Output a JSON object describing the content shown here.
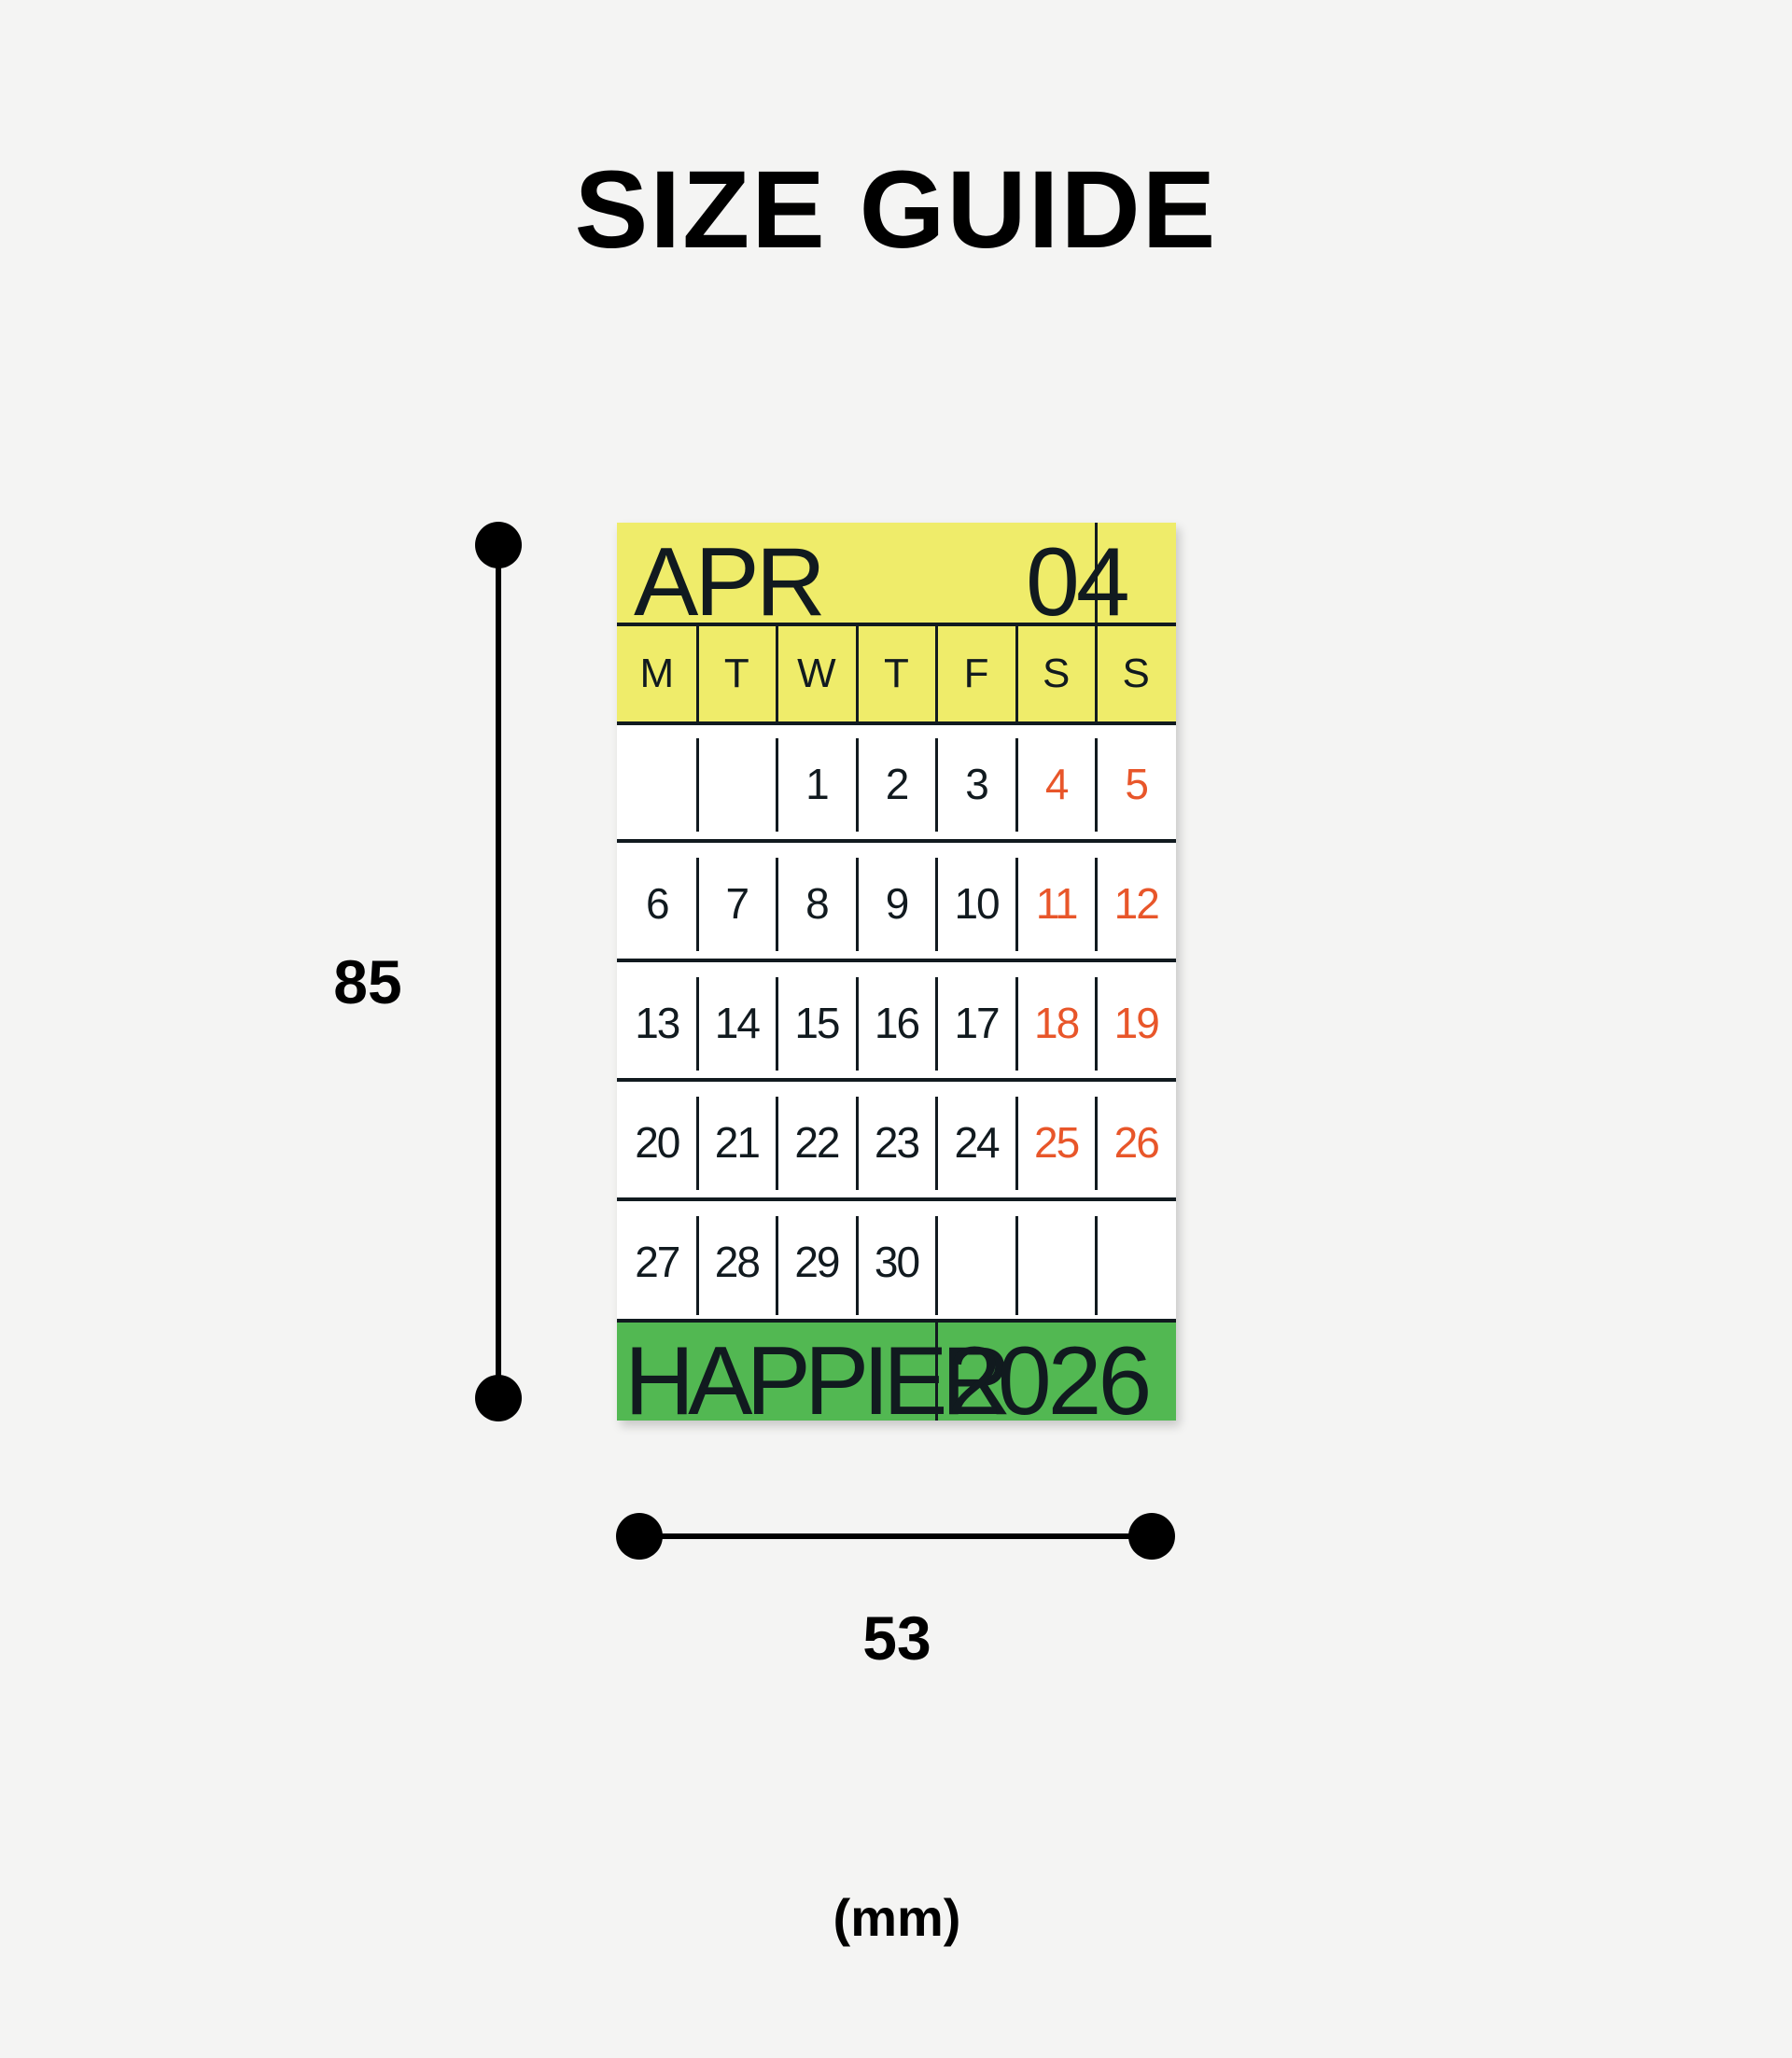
{
  "title": "SIZE GUIDE",
  "dimensions": {
    "height": "85",
    "width": "53",
    "unit": "(mm)"
  },
  "calendar": {
    "month": "APR",
    "month_number": "04",
    "weekdays": [
      "M",
      "T",
      "W",
      "T",
      "F",
      "S",
      "S"
    ],
    "weeks": [
      [
        "",
        "",
        "1",
        "2",
        "3",
        "4",
        "5"
      ],
      [
        "6",
        "7",
        "8",
        "9",
        "10",
        "11",
        "12"
      ],
      [
        "13",
        "14",
        "15",
        "16",
        "17",
        "18",
        "19"
      ],
      [
        "20",
        "21",
        "22",
        "23",
        "24",
        "25",
        "26"
      ],
      [
        "27",
        "28",
        "29",
        "30",
        "",
        "",
        ""
      ]
    ],
    "brand": "HAPPIER",
    "year": "2026"
  },
  "colors": {
    "header": "#efec6a",
    "footer": "#52b852",
    "weekend": "#e8562a",
    "ink": "#111a1f"
  }
}
